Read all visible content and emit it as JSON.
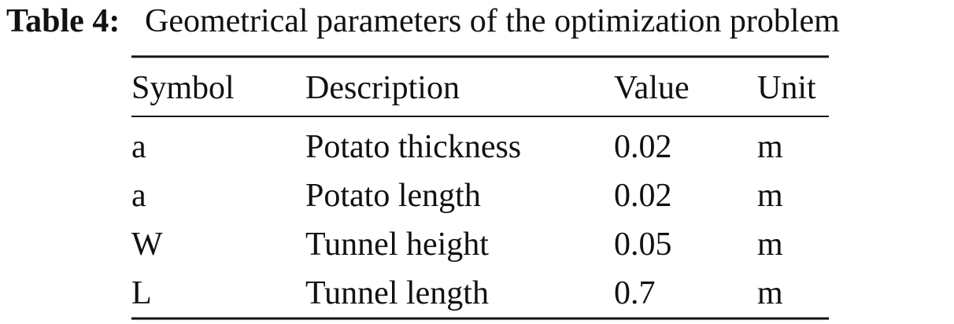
{
  "caption": {
    "label": "Table 4:",
    "text": "Geometrical parameters of the optimization problem"
  },
  "table": {
    "header": [
      "Symbol",
      "Description",
      "Value",
      "Unit"
    ],
    "rows": [
      [
        "a",
        "Potato thickness",
        "0.02",
        "m"
      ],
      [
        "a",
        "Potato length",
        "0.02",
        "m"
      ],
      [
        "W",
        "Tunnel height",
        "0.05",
        "m"
      ],
      [
        "L",
        "Tunnel length",
        "0.7",
        "m"
      ]
    ]
  }
}
